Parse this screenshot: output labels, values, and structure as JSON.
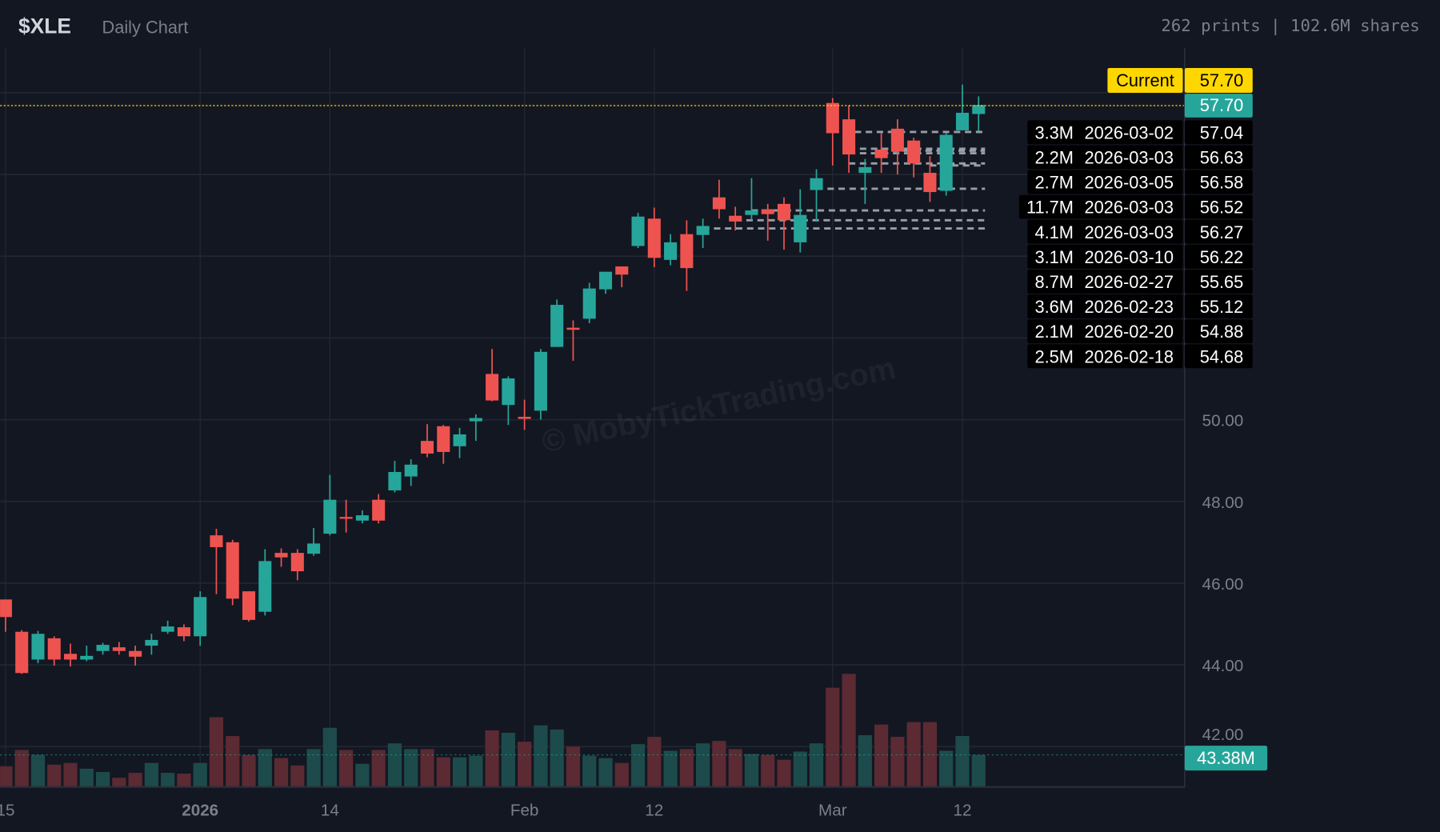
{
  "header": {
    "ticker": "$XLE",
    "subtitle": "Daily Chart",
    "stats": "262 prints | 102.6M shares"
  },
  "colors": {
    "background": "#131722",
    "up": "#26a69a",
    "down": "#ef5350",
    "volume_up": "#1d4b4c",
    "volume_down": "#5b2a33",
    "current_label": "#ffd700",
    "grid": "#222631",
    "axis_text": "#7b7f8a"
  },
  "current": {
    "label": "Current",
    "price": "57.70",
    "last_price": "57.70"
  },
  "volume_label": "43.38M",
  "watermark": "© MobyTickTrading.com",
  "prints": [
    {
      "size": "3.3M",
      "date": "2026-03-02",
      "price": "57.04"
    },
    {
      "size": "2.2M",
      "date": "2026-03-03",
      "price": "56.63"
    },
    {
      "size": "2.7M",
      "date": "2026-03-05",
      "price": "56.58"
    },
    {
      "size": "11.7M",
      "date": "2026-03-03",
      "price": "56.52"
    },
    {
      "size": "4.1M",
      "date": "2026-03-03",
      "price": "56.27"
    },
    {
      "size": "3.1M",
      "date": "2026-03-10",
      "price": "56.22"
    },
    {
      "size": "8.7M",
      "date": "2026-02-27",
      "price": "55.65"
    },
    {
      "size": "3.6M",
      "date": "2026-02-23",
      "price": "55.12"
    },
    {
      "size": "2.1M",
      "date": "2026-02-20",
      "price": "54.88"
    },
    {
      "size": "2.5M",
      "date": "2026-02-18",
      "price": "54.68"
    }
  ],
  "chart_data": {
    "type": "candlestick",
    "title": "",
    "xlabel": "",
    "ylabel": "",
    "ylim": [
      41.6,
      60.2
    ],
    "grid": true,
    "y_ticks": [
      "50.00",
      "48.00",
      "46.00",
      "44.00",
      "42.00"
    ],
    "x_ticks": [
      {
        "label": "15",
        "index": 0
      },
      {
        "label": "2026",
        "index": 12
      },
      {
        "label": "14",
        "index": 20
      },
      {
        "label": "Feb",
        "index": 32
      },
      {
        "label": "12",
        "index": 40
      },
      {
        "label": "Mar",
        "index": 51
      },
      {
        "label": "12",
        "index": 59
      }
    ],
    "ohlc": [
      [
        45.6,
        45.6,
        44.81,
        45.17
      ],
      [
        44.81,
        44.85,
        43.78,
        43.8
      ],
      [
        44.13,
        44.83,
        44.04,
        44.76
      ],
      [
        44.65,
        44.7,
        43.98,
        44.13
      ],
      [
        44.27,
        44.52,
        43.96,
        44.13
      ],
      [
        44.13,
        44.47,
        44.09,
        44.22
      ],
      [
        44.34,
        44.54,
        44.25,
        44.49
      ],
      [
        44.43,
        44.56,
        44.25,
        44.34
      ],
      [
        44.34,
        44.47,
        43.98,
        44.2
      ],
      [
        44.47,
        44.76,
        44.25,
        44.61
      ],
      [
        44.81,
        45.08,
        44.76,
        44.94
      ],
      [
        44.92,
        44.99,
        44.58,
        44.7
      ],
      [
        44.7,
        45.8,
        44.47,
        45.66
      ],
      [
        47.17,
        47.33,
        45.73,
        46.88
      ],
      [
        47.0,
        47.06,
        45.46,
        45.62
      ],
      [
        45.8,
        45.8,
        45.06,
        45.1
      ],
      [
        45.3,
        46.83,
        45.21,
        46.54
      ],
      [
        46.74,
        46.85,
        46.4,
        46.63
      ],
      [
        46.74,
        46.83,
        46.07,
        46.29
      ],
      [
        46.72,
        47.35,
        46.67,
        46.97
      ],
      [
        47.21,
        48.65,
        47.17,
        48.04
      ],
      [
        47.62,
        48.04,
        47.24,
        47.6
      ],
      [
        47.53,
        47.78,
        47.46,
        47.66
      ],
      [
        48.04,
        48.18,
        47.46,
        47.53
      ],
      [
        48.27,
        48.99,
        48.22,
        48.72
      ],
      [
        48.61,
        49.03,
        48.38,
        48.9
      ],
      [
        49.48,
        49.89,
        49.08,
        49.17
      ],
      [
        49.84,
        49.87,
        48.92,
        49.21
      ],
      [
        49.35,
        49.8,
        49.06,
        49.64
      ],
      [
        49.96,
        50.13,
        49.48,
        50.04
      ],
      [
        51.12,
        51.73,
        50.45,
        50.47
      ],
      [
        50.36,
        51.06,
        49.87,
        51.01
      ],
      [
        50.07,
        50.49,
        49.75,
        50.02
      ],
      [
        50.22,
        51.73,
        50.0,
        51.66
      ],
      [
        51.78,
        52.94,
        51.78,
        52.81
      ],
      [
        52.25,
        52.43,
        51.44,
        52.2
      ],
      [
        52.47,
        53.35,
        52.36,
        53.21
      ],
      [
        53.19,
        53.62,
        53.08,
        53.62
      ],
      [
        53.75,
        53.75,
        53.24,
        53.55
      ],
      [
        54.25,
        55.06,
        54.2,
        54.97
      ],
      [
        54.92,
        55.19,
        53.73,
        53.96
      ],
      [
        53.91,
        54.54,
        53.78,
        54.34
      ],
      [
        54.54,
        54.88,
        53.15,
        53.71
      ],
      [
        54.52,
        54.92,
        54.2,
        54.74
      ],
      [
        55.44,
        55.87,
        54.92,
        55.15
      ],
      [
        54.99,
        55.21,
        54.63,
        54.85
      ],
      [
        55.01,
        55.91,
        54.88,
        55.12
      ],
      [
        55.15,
        55.28,
        54.38,
        55.03
      ],
      [
        55.28,
        55.44,
        54.16,
        54.88
      ],
      [
        54.34,
        55.64,
        54.09,
        55.01
      ],
      [
        55.62,
        56.13,
        54.85,
        55.91
      ],
      [
        57.75,
        57.87,
        56.22,
        57.01
      ],
      [
        57.35,
        57.69,
        56.04,
        56.49
      ],
      [
        56.04,
        56.38,
        55.28,
        56.18
      ],
      [
        56.61,
        57.01,
        56.04,
        56.4
      ],
      [
        57.12,
        57.35,
        56.0,
        56.56
      ],
      [
        56.83,
        56.9,
        55.93,
        56.27
      ],
      [
        56.04,
        56.45,
        55.33,
        55.57
      ],
      [
        55.6,
        57.01,
        55.48,
        56.97
      ],
      [
        57.08,
        58.2,
        57.08,
        57.51
      ],
      [
        57.48,
        57.91,
        57.06,
        57.7
      ]
    ],
    "volume_millions": [
      28.0,
      50.0,
      43.4,
      30.2,
      32.4,
      24.7,
      20.2,
      12.5,
      19.1,
      32.4,
      19.1,
      18.0,
      32.4,
      94.2,
      68.8,
      43.4,
      51.2,
      39.0,
      29.1,
      51.2,
      79.9,
      50.0,
      31.3,
      50.0,
      58.9,
      51.2,
      51.2,
      40.1,
      40.1,
      42.3,
      76.5,
      73.2,
      61.1,
      83.2,
      77.6,
      54.5,
      42.3,
      39.0,
      32.4,
      57.8,
      67.7,
      48.9,
      51.2,
      58.9,
      62.2,
      51.2,
      44.5,
      43.4,
      36.8,
      47.8,
      58.9,
      134.0,
      152.7,
      69.9,
      84.3,
      67.7,
      87.6,
      87.6,
      48.9,
      68.8,
      43.4
    ],
    "volume_average_millions": 43.38,
    "print_levels": [
      {
        "price": 57.04,
        "from_index": 51
      },
      {
        "price": 56.63,
        "from_index": 52
      },
      {
        "price": 56.58,
        "from_index": 54
      },
      {
        "price": 56.52,
        "from_index": 52
      },
      {
        "price": 56.27,
        "from_index": 52
      },
      {
        "price": 56.22,
        "from_index": 57
      },
      {
        "price": 55.65,
        "from_index": 50
      },
      {
        "price": 55.12,
        "from_index": 46
      },
      {
        "price": 54.88,
        "from_index": 45
      },
      {
        "price": 54.68,
        "from_index": 43
      }
    ]
  }
}
